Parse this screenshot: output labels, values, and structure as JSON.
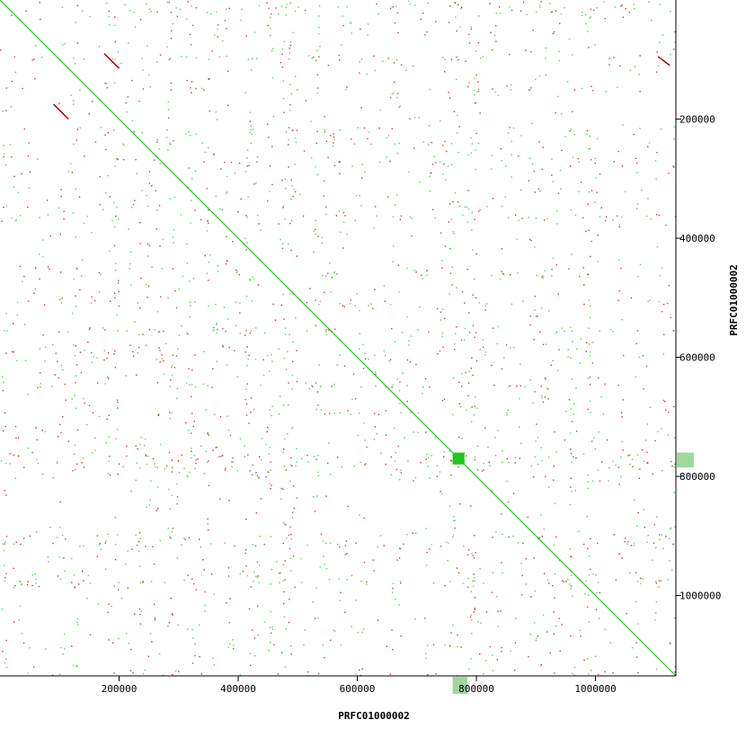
{
  "chart_data": {
    "type": "scatter",
    "subtype": "dotplot",
    "xlabel": "PRFC01000002",
    "ylabel": "PRFC01000002",
    "xlim": [
      0,
      1135000
    ],
    "ylim": [
      0,
      1135000
    ],
    "y_axis_side": "right",
    "y_axis_inverted": true,
    "x_ticks": [
      200000,
      400000,
      600000,
      800000,
      1000000
    ],
    "x_tick_labels": [
      "200000",
      "400000",
      "600000",
      "800000",
      "1000000"
    ],
    "y_ticks": [
      200000,
      400000,
      600000,
      800000,
      1000000
    ],
    "y_tick_labels": [
      "200000",
      "400000",
      "600000",
      "800000",
      "1000000"
    ],
    "colors": {
      "forward": "#1fc81f",
      "reverse": "#b00000",
      "highlight_band": "#9fd89f",
      "axis": "#000000"
    },
    "series": [
      {
        "name": "forward",
        "segments": [
          {
            "x": [
              0,
              1135000
            ],
            "y": [
              0,
              1135000
            ]
          },
          {
            "x": [
              760000,
              780000
            ],
            "y": [
              760000,
              780000
            ],
            "block": true
          }
        ]
      },
      {
        "name": "reverse",
        "segments": [
          {
            "x": [
              175000,
              200000
            ],
            "y": [
              90000,
              115000
            ]
          },
          {
            "x": [
              90000,
              115000
            ],
            "y": [
              175000,
              200000
            ]
          },
          {
            "x": [
              1105000,
              1125000
            ],
            "y": [
              95000,
              110000
            ]
          }
        ]
      }
    ],
    "highlight_ranges": [
      [
        760000,
        785000
      ]
    ],
    "grid": false,
    "legend": "none"
  }
}
